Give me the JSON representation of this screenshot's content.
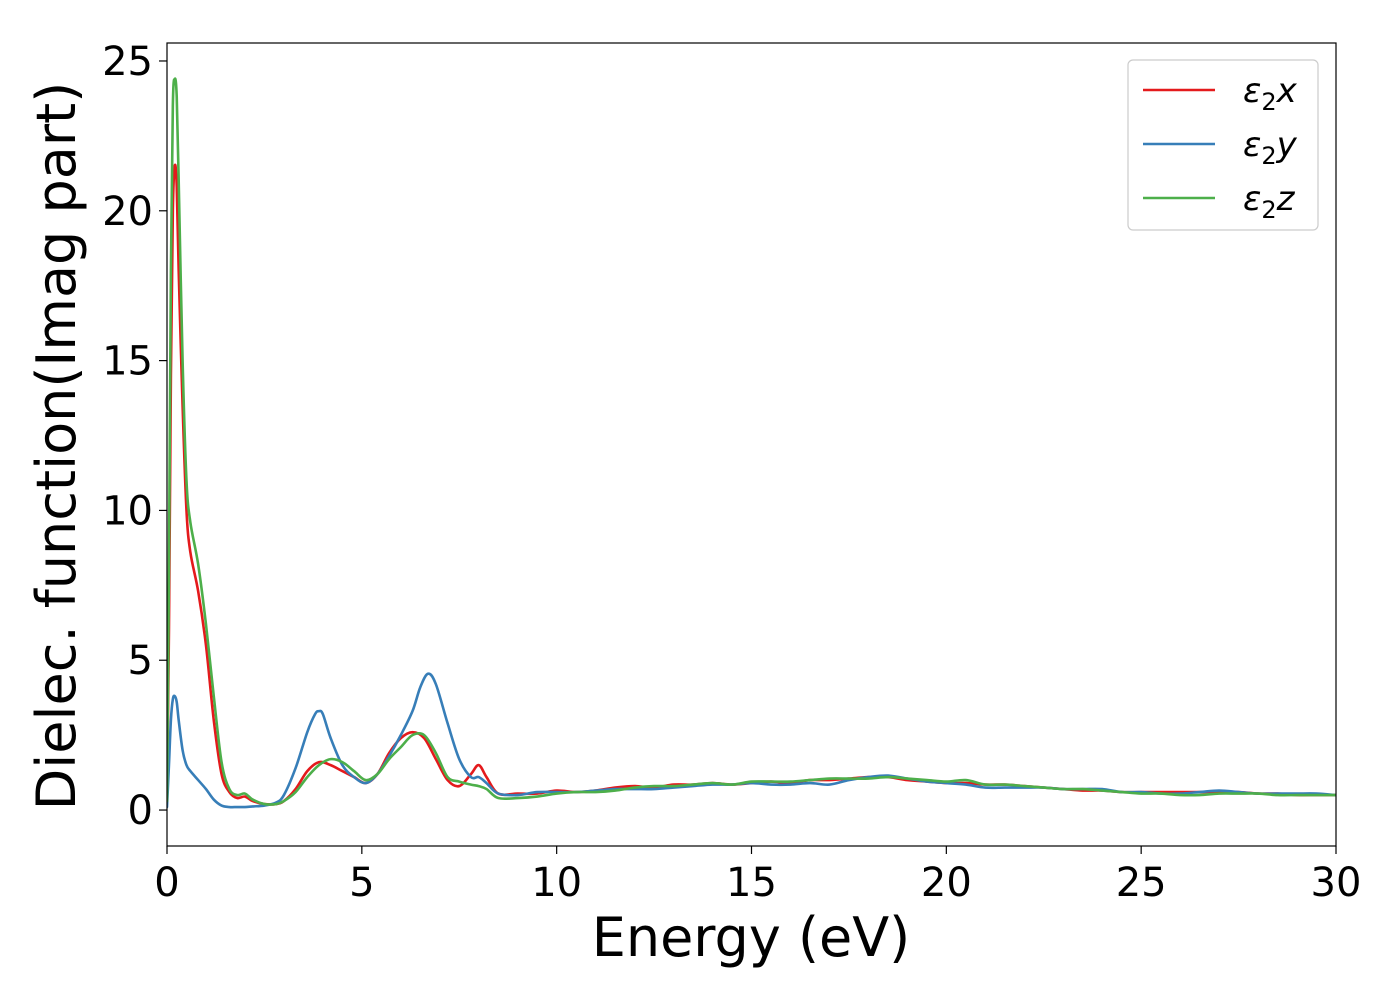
{
  "chart_data": {
    "type": "line",
    "title": "",
    "xlabel": "Energy (eV)",
    "ylabel": "Dielec. function(Imag part)",
    "xlim": [
      0,
      30
    ],
    "ylim": [
      -1.2,
      25.6
    ],
    "xticks": [
      0,
      5,
      10,
      15,
      20,
      25,
      30
    ],
    "yticks": [
      0,
      5,
      10,
      15,
      20,
      25
    ],
    "grid": false,
    "legend_position": "top-right",
    "series": [
      {
        "name": "ε2x",
        "legend_base": "ε",
        "legend_sub": "2",
        "legend_var": "x",
        "color": "#e41a1c",
        "x": [
          0,
          0.05,
          0.1,
          0.15,
          0.2,
          0.25,
          0.3,
          0.4,
          0.5,
          0.6,
          0.8,
          1.0,
          1.2,
          1.4,
          1.6,
          1.8,
          2.0,
          2.2,
          2.5,
          2.8,
          3.0,
          3.3,
          3.6,
          3.9,
          4.2,
          4.5,
          4.8,
          5.1,
          5.4,
          5.7,
          6.0,
          6.3,
          6.6,
          6.9,
          7.2,
          7.5,
          7.8,
          8.0,
          8.2,
          8.5,
          9.0,
          9.5,
          10.0,
          10.5,
          11.0,
          11.5,
          12.0,
          12.5,
          13.0,
          13.5,
          14.0,
          14.5,
          15.0,
          15.5,
          16.0,
          16.5,
          17.0,
          17.5,
          18.0,
          18.5,
          19.0,
          19.5,
          20.0,
          20.5,
          21.0,
          21.5,
          22.0,
          22.5,
          23.0,
          23.5,
          24.0,
          24.5,
          25.0,
          25.5,
          26.0,
          26.5,
          27.0,
          27.5,
          28.0,
          28.5,
          29.0,
          29.5,
          30.0
        ],
        "y": [
          0.3,
          6.0,
          14.5,
          20.0,
          21.5,
          20.8,
          18.0,
          13.5,
          10.0,
          8.6,
          7.3,
          5.5,
          3.0,
          1.2,
          0.6,
          0.4,
          0.45,
          0.3,
          0.2,
          0.2,
          0.3,
          0.7,
          1.3,
          1.6,
          1.5,
          1.3,
          1.1,
          0.9,
          1.2,
          1.9,
          2.4,
          2.6,
          2.4,
          1.7,
          1.0,
          0.8,
          1.2,
          1.5,
          1.1,
          0.55,
          0.55,
          0.55,
          0.65,
          0.6,
          0.65,
          0.75,
          0.8,
          0.75,
          0.85,
          0.85,
          0.9,
          0.85,
          0.9,
          0.95,
          0.9,
          1.0,
          1.0,
          1.05,
          1.1,
          1.1,
          1.0,
          0.95,
          0.9,
          0.9,
          0.85,
          0.85,
          0.8,
          0.75,
          0.7,
          0.65,
          0.65,
          0.6,
          0.6,
          0.6,
          0.6,
          0.6,
          0.6,
          0.6,
          0.55,
          0.55,
          0.5,
          0.5,
          0.5
        ]
      },
      {
        "name": "ε2y",
        "legend_base": "ε",
        "legend_sub": "2",
        "legend_var": "y",
        "color": "#377eb8",
        "x": [
          0,
          0.05,
          0.1,
          0.15,
          0.2,
          0.25,
          0.3,
          0.4,
          0.5,
          0.6,
          0.8,
          1.0,
          1.2,
          1.4,
          1.6,
          1.8,
          2.0,
          2.2,
          2.5,
          2.8,
          3.0,
          3.3,
          3.6,
          3.8,
          3.9,
          4.0,
          4.2,
          4.5,
          4.8,
          5.1,
          5.4,
          5.7,
          6.0,
          6.3,
          6.5,
          6.7,
          6.9,
          7.2,
          7.5,
          7.8,
          8.0,
          8.2,
          8.5,
          9.0,
          9.5,
          10.0,
          10.5,
          11.0,
          11.5,
          12.0,
          12.5,
          13.0,
          13.5,
          14.0,
          14.5,
          15.0,
          15.5,
          16.0,
          16.5,
          17.0,
          17.5,
          18.0,
          18.5,
          19.0,
          19.5,
          20.0,
          20.5,
          21.0,
          21.5,
          22.0,
          22.5,
          23.0,
          23.5,
          24.0,
          24.5,
          25.0,
          25.5,
          26.0,
          26.5,
          27.0,
          27.5,
          28.0,
          28.5,
          29.0,
          29.5,
          30.0
        ],
        "y": [
          0.1,
          1.5,
          3.0,
          3.7,
          3.8,
          3.6,
          3.0,
          2.0,
          1.5,
          1.3,
          1.0,
          0.7,
          0.35,
          0.15,
          0.1,
          0.1,
          0.1,
          0.12,
          0.15,
          0.25,
          0.5,
          1.4,
          2.6,
          3.2,
          3.3,
          3.2,
          2.4,
          1.5,
          1.1,
          0.9,
          1.2,
          1.8,
          2.5,
          3.3,
          4.1,
          4.55,
          4.2,
          2.9,
          1.7,
          1.1,
          1.1,
          0.9,
          0.55,
          0.5,
          0.6,
          0.6,
          0.6,
          0.65,
          0.7,
          0.7,
          0.7,
          0.75,
          0.8,
          0.85,
          0.85,
          0.9,
          0.85,
          0.85,
          0.9,
          0.85,
          1.0,
          1.1,
          1.15,
          1.05,
          0.95,
          0.9,
          0.85,
          0.75,
          0.75,
          0.75,
          0.75,
          0.7,
          0.7,
          0.7,
          0.6,
          0.6,
          0.55,
          0.55,
          0.6,
          0.65,
          0.6,
          0.55,
          0.55,
          0.55,
          0.55,
          0.5
        ]
      },
      {
        "name": "ε2z",
        "legend_base": "ε",
        "legend_sub": "2",
        "legend_var": "z",
        "color": "#4daf4a",
        "x": [
          0,
          0.05,
          0.1,
          0.15,
          0.2,
          0.25,
          0.3,
          0.4,
          0.5,
          0.6,
          0.8,
          1.0,
          1.2,
          1.4,
          1.6,
          1.8,
          2.0,
          2.2,
          2.5,
          2.8,
          3.0,
          3.3,
          3.6,
          3.9,
          4.2,
          4.5,
          4.8,
          5.1,
          5.4,
          5.7,
          6.0,
          6.3,
          6.6,
          6.9,
          7.2,
          7.5,
          7.8,
          8.0,
          8.2,
          8.5,
          9.0,
          9.5,
          10.0,
          10.5,
          11.0,
          11.5,
          12.0,
          12.5,
          13.0,
          13.5,
          14.0,
          14.5,
          15.0,
          15.5,
          16.0,
          16.5,
          17.0,
          17.5,
          18.0,
          18.5,
          19.0,
          19.5,
          20.0,
          20.5,
          21.0,
          21.5,
          22.0,
          22.5,
          23.0,
          23.5,
          24.0,
          24.5,
          25.0,
          25.5,
          26.0,
          26.5,
          27.0,
          27.5,
          28.0,
          28.5,
          29.0,
          29.5,
          30.0
        ],
        "y": [
          0.3,
          8.0,
          18.0,
          23.5,
          24.4,
          23.8,
          21.0,
          15.0,
          11.0,
          9.6,
          8.2,
          6.2,
          3.8,
          1.6,
          0.7,
          0.5,
          0.55,
          0.35,
          0.2,
          0.2,
          0.3,
          0.6,
          1.1,
          1.5,
          1.7,
          1.6,
          1.3,
          1.0,
          1.2,
          1.7,
          2.1,
          2.5,
          2.5,
          1.9,
          1.1,
          0.95,
          0.85,
          0.8,
          0.7,
          0.4,
          0.4,
          0.45,
          0.55,
          0.6,
          0.6,
          0.65,
          0.75,
          0.8,
          0.8,
          0.85,
          0.9,
          0.85,
          0.95,
          0.95,
          0.95,
          1.0,
          1.05,
          1.05,
          1.05,
          1.1,
          1.05,
          1.0,
          0.95,
          1.0,
          0.85,
          0.85,
          0.8,
          0.75,
          0.7,
          0.7,
          0.65,
          0.6,
          0.55,
          0.55,
          0.5,
          0.5,
          0.55,
          0.55,
          0.55,
          0.5,
          0.5,
          0.5,
          0.5
        ]
      }
    ]
  }
}
